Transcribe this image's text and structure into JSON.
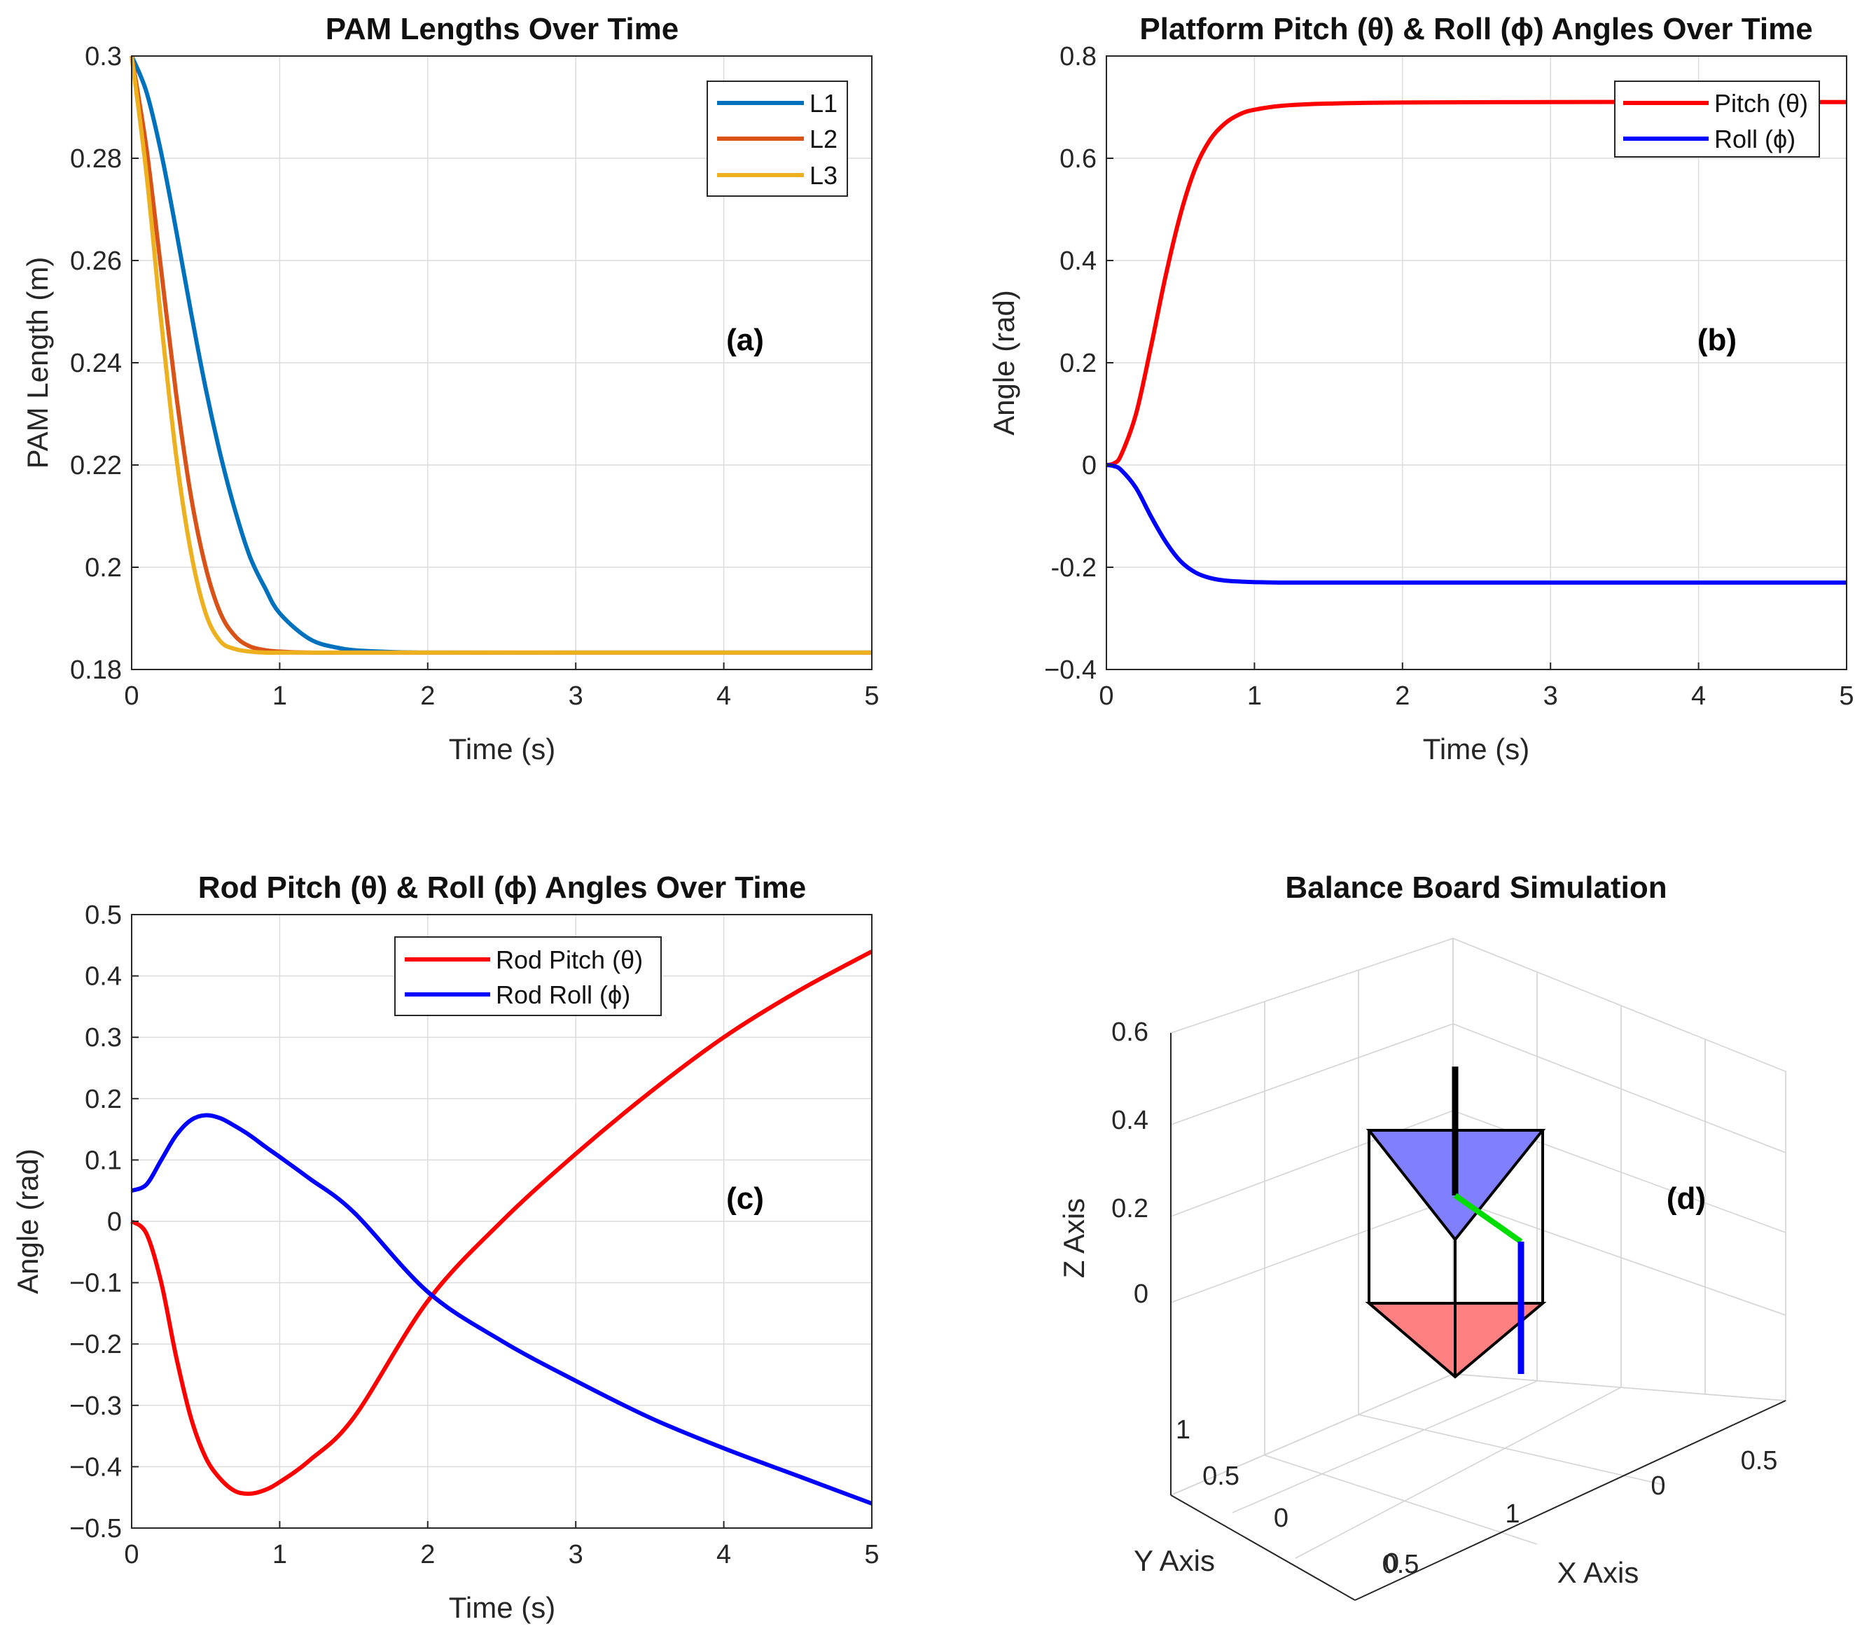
{
  "chart_data": [
    {
      "id": "a",
      "type": "line",
      "title": "PAM Lengths Over Time",
      "xlabel": "Time (s)",
      "ylabel": "PAM Length (m)",
      "xlim": [
        0,
        5
      ],
      "ylim": [
        0.18,
        0.3
      ],
      "xticks": [
        0,
        1,
        2,
        3,
        4,
        5
      ],
      "xtick_labels": [
        "0",
        "1",
        "2",
        "3",
        "4",
        "5"
      ],
      "yticks": [
        0.18,
        0.2,
        0.22,
        0.24,
        0.26,
        0.28,
        0.3
      ],
      "ytick_labels": [
        "0.18",
        "0.2",
        "0.22",
        "0.24",
        "0.26",
        "0.28",
        "0.3"
      ],
      "grid": true,
      "legend_position": "top-right",
      "annotation": "(a)",
      "x": [
        0,
        0.1,
        0.2,
        0.3,
        0.4,
        0.5,
        0.6,
        0.7,
        0.8,
        0.9,
        1.0,
        1.2,
        1.4,
        1.6,
        2.0,
        3.0,
        4.0,
        5.0
      ],
      "series": [
        {
          "name": "L1",
          "color": "#0072bd",
          "values": [
            0.3,
            0.293,
            0.281,
            0.266,
            0.25,
            0.235,
            0.222,
            0.211,
            0.202,
            0.196,
            0.191,
            0.186,
            0.1842,
            0.1836,
            0.1833,
            0.1833,
            0.1833,
            0.1833
          ]
        },
        {
          "name": "L2",
          "color": "#d95319",
          "values": [
            0.3,
            0.282,
            0.258,
            0.234,
            0.214,
            0.2,
            0.191,
            0.1865,
            0.1845,
            0.1838,
            0.1835,
            0.1833,
            0.1833,
            0.1833,
            0.1833,
            0.1833,
            0.1833,
            0.1833
          ]
        },
        {
          "name": "L3",
          "color": "#edb120",
          "values": [
            0.3,
            0.277,
            0.248,
            0.222,
            0.203,
            0.191,
            0.1855,
            0.184,
            0.1835,
            0.1833,
            0.1833,
            0.1833,
            0.1833,
            0.1833,
            0.1833,
            0.1833,
            0.1833,
            0.1833
          ]
        }
      ]
    },
    {
      "id": "b",
      "type": "line",
      "title": "Platform Pitch (θ) & Roll (ϕ) Angles Over Time",
      "xlabel": "Time (s)",
      "ylabel": "Angle (rad)",
      "xlim": [
        0,
        5
      ],
      "ylim": [
        -0.4,
        0.8
      ],
      "xticks": [
        0,
        1,
        2,
        3,
        4,
        5
      ],
      "xtick_labels": [
        "0",
        "1",
        "2",
        "3",
        "4",
        "5"
      ],
      "yticks": [
        -0.4,
        -0.2,
        0,
        0.2,
        0.4,
        0.6,
        0.8
      ],
      "ytick_labels": [
        "−0.4",
        "-0.2",
        "0",
        "0.2",
        "0.4",
        "0.6",
        "0.8"
      ],
      "grid": true,
      "legend_position": "top-right",
      "annotation": "(b)",
      "x": [
        0,
        0.05,
        0.1,
        0.2,
        0.3,
        0.4,
        0.5,
        0.6,
        0.7,
        0.8,
        0.9,
        1.0,
        1.2,
        1.5,
        2.0,
        3.0,
        4.0,
        5.0
      ],
      "series": [
        {
          "name": "Pitch (θ)",
          "color": "#ff0000",
          "values": [
            0,
            0.003,
            0.02,
            0.1,
            0.23,
            0.37,
            0.49,
            0.58,
            0.636,
            0.668,
            0.686,
            0.695,
            0.703,
            0.707,
            0.709,
            0.71,
            0.71,
            0.71
          ]
        },
        {
          "name": "Roll (ϕ)",
          "color": "#0000ff",
          "values": [
            0,
            -0.002,
            -0.01,
            -0.045,
            -0.1,
            -0.15,
            -0.188,
            -0.21,
            -0.221,
            -0.226,
            -0.228,
            -0.229,
            -0.23,
            -0.23,
            -0.23,
            -0.23,
            -0.23,
            -0.23
          ]
        }
      ]
    },
    {
      "id": "c",
      "type": "line",
      "title": "Rod Pitch (θ) & Roll (ϕ) Angles Over Time",
      "xlabel": "Time (s)",
      "ylabel": "Angle (rad)",
      "xlim": [
        0,
        5
      ],
      "ylim": [
        -0.5,
        0.5
      ],
      "xticks": [
        0,
        1,
        2,
        3,
        4,
        5
      ],
      "xtick_labels": [
        "0",
        "1",
        "2",
        "3",
        "4",
        "5"
      ],
      "yticks": [
        -0.5,
        -0.4,
        -0.3,
        -0.2,
        -0.1,
        0,
        0.1,
        0.2,
        0.3,
        0.4,
        0.5
      ],
      "ytick_labels": [
        "−0.5",
        "−0.4",
        "−0.3",
        "−0.2",
        "−0.1",
        "0",
        "0.1",
        "0.2",
        "0.3",
        "0.4",
        "0.5"
      ],
      "grid": true,
      "legend_position": "top-center",
      "annotation": "(c)",
      "x": [
        0,
        0.1,
        0.2,
        0.3,
        0.4,
        0.5,
        0.6,
        0.7,
        0.8,
        0.9,
        1.0,
        1.2,
        1.5,
        2.0,
        2.5,
        3.0,
        3.5,
        4.0,
        4.5,
        5.0
      ],
      "series": [
        {
          "name": "Rod Pitch (θ)",
          "color": "#ff0000",
          "values": [
            0,
            -0.02,
            -0.1,
            -0.22,
            -0.32,
            -0.385,
            -0.42,
            -0.44,
            -0.444,
            -0.438,
            -0.425,
            -0.39,
            -0.32,
            -0.13,
            0.0,
            0.11,
            0.21,
            0.3,
            0.375,
            0.44
          ]
        },
        {
          "name": "Rod Roll (ϕ)",
          "color": "#0000ff",
          "values": [
            0.05,
            0.06,
            0.1,
            0.14,
            0.165,
            0.173,
            0.168,
            0.155,
            0.14,
            0.122,
            0.105,
            0.07,
            0.015,
            -0.115,
            -0.195,
            -0.26,
            -0.32,
            -0.37,
            -0.415,
            -0.46
          ]
        }
      ]
    },
    {
      "id": "d",
      "type": "scatter",
      "title": "Balance Board Simulation",
      "xlabel": "X Axis",
      "ylabel": "Y Axis",
      "zlabel": "Z Axis",
      "xtick_labels": [
        "0.5",
        "1",
        "0",
        "0.5"
      ],
      "ytick_labels": [
        "0",
        "0.5",
        "1"
      ],
      "ztick_labels": [
        "0",
        "0.2",
        "0.4",
        "0.6"
      ],
      "grid": true,
      "annotation": "(d)",
      "elements": [
        "top-platform",
        "base-platform",
        "rod",
        "link-green",
        "link-blue"
      ],
      "colors": {
        "top_platform": "#8080ff",
        "base_platform": "#ff8080",
        "rod": "#000000",
        "link_green": "#00dd00",
        "link_blue": "#0000ff"
      }
    }
  ]
}
